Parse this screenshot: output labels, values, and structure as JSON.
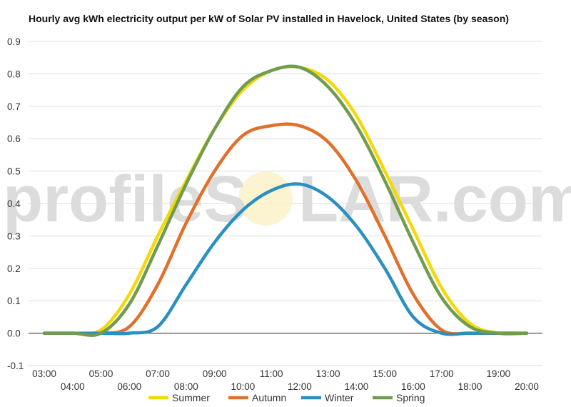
{
  "chart_data": {
    "type": "line",
    "title": "Hourly avg kWh electricity output per kW of Solar PV installed in Havelock, United States (by season)",
    "xlabel": "",
    "ylabel": "",
    "ylim": [
      -0.1,
      0.9
    ],
    "yticks": [
      "-0.1",
      "0.0",
      "0.1",
      "0.2",
      "0.3",
      "0.4",
      "0.5",
      "0.6",
      "0.7",
      "0.8",
      "0.9"
    ],
    "categories": [
      "03:00",
      "04:00",
      "05:00",
      "06:00",
      "07:00",
      "08:00",
      "09:00",
      "10:00",
      "11:00",
      "12:00",
      "13:00",
      "14:00",
      "15:00",
      "16:00",
      "17:00",
      "18:00",
      "19:00",
      "20:00"
    ],
    "grid": true,
    "legend": "bottom",
    "series": [
      {
        "name": "Summer",
        "color": "#f5d80b",
        "values": [
          0,
          0,
          0.01,
          0.12,
          0.3,
          0.47,
          0.63,
          0.75,
          0.81,
          0.82,
          0.78,
          0.67,
          0.5,
          0.32,
          0.14,
          0.03,
          0,
          0
        ]
      },
      {
        "name": "Autumn",
        "color": "#e0702a",
        "values": [
          0,
          0,
          0,
          0.02,
          0.15,
          0.34,
          0.5,
          0.61,
          0.64,
          0.64,
          0.59,
          0.47,
          0.3,
          0.12,
          0.01,
          0,
          0,
          0
        ]
      },
      {
        "name": "Winter",
        "color": "#2a90bd",
        "values": [
          0,
          0,
          0,
          0,
          0.02,
          0.15,
          0.28,
          0.38,
          0.44,
          0.46,
          0.42,
          0.33,
          0.2,
          0.05,
          0,
          0,
          0,
          0
        ]
      },
      {
        "name": "Spring",
        "color": "#709c50",
        "values": [
          0,
          0,
          0,
          0.09,
          0.27,
          0.46,
          0.63,
          0.76,
          0.81,
          0.82,
          0.76,
          0.64,
          0.47,
          0.28,
          0.11,
          0.02,
          0,
          0
        ]
      }
    ]
  },
  "watermark": {
    "text_left": "profileS",
    "text_right": "LAR.com"
  }
}
